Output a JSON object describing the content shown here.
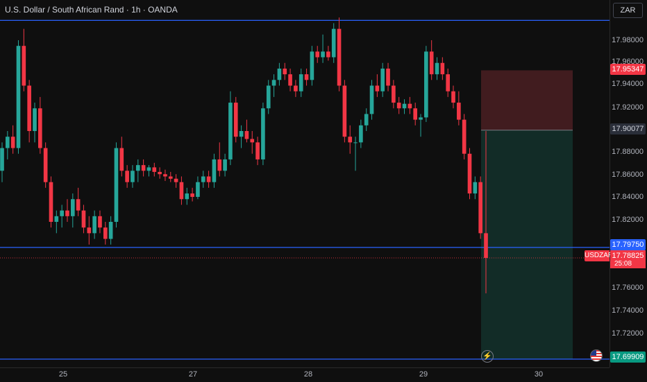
{
  "header": {
    "symbol_title": "U.S. Dollar / South African Rand · 1h · OANDA"
  },
  "currency_button": {
    "label": "ZAR"
  },
  "price_axis": {
    "ticks": [
      "17.98000",
      "17.96000",
      "17.94000",
      "17.92000",
      "17.88000",
      "17.86000",
      "17.84000",
      "17.82000",
      "17.76000",
      "17.74000",
      "17.72000"
    ],
    "labels": {
      "stop_loss": "17.95347",
      "entry": "17.90077",
      "line_level": "17.79750",
      "last_price": "17.78825",
      "countdown": "25:08",
      "take_profit": "17.69909"
    },
    "symbol_tag": "USDZAR"
  },
  "time_axis": {
    "ticks": [
      "25",
      "27",
      "28",
      "29",
      "30"
    ]
  },
  "icons": {
    "lightning": "lightning-icon",
    "flag": "us-flag-icon"
  },
  "colors": {
    "up": "#26a69a",
    "down": "#f23645",
    "horizontal_line": "#2962ff",
    "stop_zone": "#4a1f22",
    "target_zone": "#13302a"
  },
  "chart_data": {
    "type": "candlestick",
    "symbol": "USDZAR",
    "interval": "1h",
    "source": "OANDA",
    "ylim": [
      17.69,
      18.0
    ],
    "horizontal_lines": [
      17.9975,
      17.7975,
      17.69909
    ],
    "last_price": 17.78825,
    "position": {
      "stop": 17.95347,
      "entry": 17.90077,
      "target": 17.69909
    },
    "x_ticks": [
      "25",
      "27",
      "28",
      "29",
      "30"
    ],
    "candles": [
      [
        17.865,
        17.89,
        17.855,
        17.885
      ],
      [
        17.885,
        17.9,
        17.875,
        17.895
      ],
      [
        17.895,
        17.905,
        17.88,
        17.885
      ],
      [
        17.885,
        17.98,
        17.88,
        17.975
      ],
      [
        17.975,
        17.99,
        17.935,
        17.94
      ],
      [
        17.94,
        17.945,
        17.89,
        17.9
      ],
      [
        17.9,
        17.925,
        17.89,
        17.92
      ],
      [
        17.92,
        17.93,
        17.88,
        17.885
      ],
      [
        17.885,
        17.89,
        17.85,
        17.855
      ],
      [
        17.855,
        17.86,
        17.815,
        17.82
      ],
      [
        17.82,
        17.83,
        17.81,
        17.825
      ],
      [
        17.825,
        17.835,
        17.815,
        17.83
      ],
      [
        17.83,
        17.84,
        17.82,
        17.825
      ],
      [
        17.825,
        17.845,
        17.815,
        17.84
      ],
      [
        17.84,
        17.85,
        17.825,
        17.83
      ],
      [
        17.83,
        17.835,
        17.81,
        17.815
      ],
      [
        17.815,
        17.825,
        17.8,
        17.81
      ],
      [
        17.81,
        17.83,
        17.805,
        17.825
      ],
      [
        17.825,
        17.83,
        17.81,
        17.815
      ],
      [
        17.815,
        17.82,
        17.8,
        17.805
      ],
      [
        17.805,
        17.825,
        17.8,
        17.82
      ],
      [
        17.82,
        17.89,
        17.815,
        17.885
      ],
      [
        17.885,
        17.895,
        17.86,
        17.865
      ],
      [
        17.865,
        17.87,
        17.85,
        17.855
      ],
      [
        17.855,
        17.87,
        17.85,
        17.865
      ],
      [
        17.865,
        17.875,
        17.855,
        17.87
      ],
      [
        17.87,
        17.875,
        17.86,
        17.865
      ],
      [
        17.865,
        17.87,
        17.86,
        17.868
      ],
      [
        17.868,
        17.872,
        17.86,
        17.864
      ],
      [
        17.864,
        17.868,
        17.858,
        17.862
      ],
      [
        17.862,
        17.866,
        17.856,
        17.86
      ],
      [
        17.86,
        17.864,
        17.855,
        17.858
      ],
      [
        17.858,
        17.862,
        17.85,
        17.855
      ],
      [
        17.855,
        17.86,
        17.835,
        17.84
      ],
      [
        17.84,
        17.85,
        17.835,
        17.845
      ],
      [
        17.845,
        17.85,
        17.838,
        17.842
      ],
      [
        17.842,
        17.86,
        17.84,
        17.855
      ],
      [
        17.855,
        17.865,
        17.85,
        17.86
      ],
      [
        17.86,
        17.865,
        17.85,
        17.855
      ],
      [
        17.855,
        17.88,
        17.85,
        17.875
      ],
      [
        17.875,
        17.89,
        17.86,
        17.865
      ],
      [
        17.865,
        17.88,
        17.86,
        17.875
      ],
      [
        17.875,
        17.935,
        17.87,
        17.925
      ],
      [
        17.925,
        17.93,
        17.89,
        17.895
      ],
      [
        17.895,
        17.905,
        17.885,
        17.9
      ],
      [
        17.9,
        17.91,
        17.89,
        17.893
      ],
      [
        17.893,
        17.9,
        17.88,
        17.89
      ],
      [
        17.89,
        17.895,
        17.87,
        17.875
      ],
      [
        17.875,
        17.925,
        17.87,
        17.92
      ],
      [
        17.92,
        17.945,
        17.915,
        17.94
      ],
      [
        17.94,
        17.95,
        17.93,
        17.945
      ],
      [
        17.945,
        17.96,
        17.94,
        17.955
      ],
      [
        17.955,
        17.96,
        17.945,
        17.95
      ],
      [
        17.95,
        17.955,
        17.935,
        17.94
      ],
      [
        17.94,
        17.945,
        17.93,
        17.935
      ],
      [
        17.935,
        17.955,
        17.93,
        17.95
      ],
      [
        17.95,
        17.955,
        17.94,
        17.945
      ],
      [
        17.945,
        17.975,
        17.94,
        17.97
      ],
      [
        17.97,
        17.975,
        17.96,
        17.965
      ],
      [
        17.965,
        17.985,
        17.96,
        17.97
      ],
      [
        17.97,
        17.975,
        17.962,
        17.965
      ],
      [
        17.965,
        17.995,
        17.96,
        17.99
      ],
      [
        17.99,
        18.0,
        17.935,
        17.94
      ],
      [
        17.94,
        17.945,
        17.89,
        17.895
      ],
      [
        17.895,
        17.905,
        17.88,
        17.89
      ],
      [
        17.89,
        17.895,
        17.865,
        17.89
      ],
      [
        17.89,
        17.91,
        17.885,
        17.905
      ],
      [
        17.905,
        17.92,
        17.9,
        17.915
      ],
      [
        17.915,
        17.945,
        17.91,
        17.94
      ],
      [
        17.94,
        17.95,
        17.93,
        17.935
      ],
      [
        17.935,
        17.96,
        17.93,
        17.955
      ],
      [
        17.955,
        17.96,
        17.935,
        17.94
      ],
      [
        17.94,
        17.945,
        17.92,
        17.925
      ],
      [
        17.925,
        17.93,
        17.915,
        17.92
      ],
      [
        17.92,
        17.928,
        17.915,
        17.924
      ],
      [
        17.924,
        17.93,
        17.915,
        17.92
      ],
      [
        17.92,
        17.925,
        17.905,
        17.91
      ],
      [
        17.91,
        17.915,
        17.895,
        17.912
      ],
      [
        17.912,
        17.975,
        17.908,
        17.97
      ],
      [
        17.97,
        17.98,
        17.945,
        17.95
      ],
      [
        17.95,
        17.965,
        17.945,
        17.96
      ],
      [
        17.96,
        17.965,
        17.945,
        17.95
      ],
      [
        17.95,
        17.955,
        17.93,
        17.935
      ],
      [
        17.935,
        17.94,
        17.92,
        17.925
      ],
      [
        17.925,
        17.935,
        17.905,
        17.91
      ],
      [
        17.91,
        17.915,
        17.875,
        17.88
      ],
      [
        17.88,
        17.885,
        17.84,
        17.845
      ],
      [
        17.845,
        17.86,
        17.84,
        17.855
      ],
      [
        17.855,
        17.86,
        17.805,
        17.81
      ],
      [
        17.81,
        17.9,
        17.757,
        17.78825
      ]
    ]
  }
}
